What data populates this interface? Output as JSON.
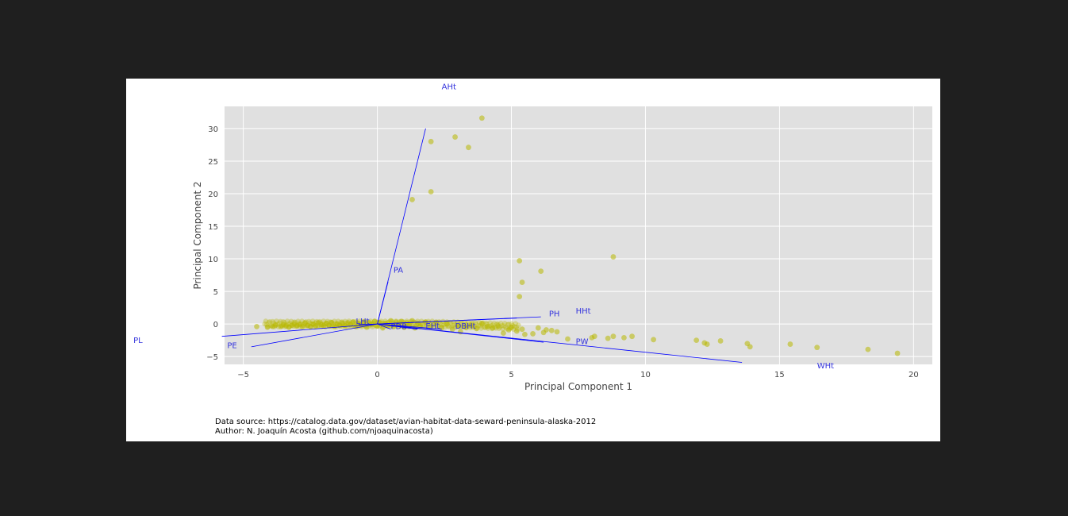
{
  "colors": {
    "background": "#1f1f1f",
    "figure": "#ffffff",
    "plot_background": "#e0e0e0",
    "grid": "#ffffff",
    "points": "#b8b800",
    "vectors": "#0000ff",
    "vector_labels": "#3333dd",
    "axis_text": "#444444"
  },
  "caption": {
    "source": "Data source: https://catalog.data.gov/dataset/avian-habitat-data-seward-peninsula-alaska-2012",
    "author": "Author: N. Joaquín Acosta (github.com/njoaquinacosta)"
  },
  "chart_data": {
    "type": "scatter",
    "title": "",
    "xlabel": "Principal Component 1",
    "ylabel": "Principal Component 2",
    "xlim": [
      -5.7,
      20.7
    ],
    "ylim": [
      -6.2,
      33.4
    ],
    "xticks": [
      -5,
      0,
      5,
      10,
      15,
      20
    ],
    "xtick_labels": [
      "−5",
      "0",
      "5",
      "10",
      "15",
      "20"
    ],
    "yticks": [
      -5,
      0,
      5,
      10,
      15,
      20,
      25,
      30
    ],
    "ytick_labels": [
      "−5",
      "0",
      "5",
      "10",
      "15",
      "20",
      "25",
      "30"
    ],
    "grid": true,
    "points": [
      [
        -4.5,
        -0.4
      ],
      [
        -4.1,
        -0.5
      ],
      [
        -3.9,
        -0.4
      ],
      [
        -3.8,
        -0.2
      ],
      [
        -3.6,
        -0.4
      ],
      [
        -3.5,
        -0.1
      ],
      [
        -3.4,
        -0.3
      ],
      [
        -3.3,
        -0.5
      ],
      [
        -3.2,
        -0.2
      ],
      [
        -3.1,
        0.0
      ],
      [
        -3.0,
        -0.3
      ],
      [
        -2.9,
        -0.1
      ],
      [
        -2.8,
        -0.4
      ],
      [
        -2.7,
        0.1
      ],
      [
        -2.6,
        -0.2
      ],
      [
        -2.5,
        -0.4
      ],
      [
        -2.4,
        0.0
      ],
      [
        -2.3,
        -0.3
      ],
      [
        -2.2,
        0.2
      ],
      [
        -2.1,
        -0.1
      ],
      [
        -2.0,
        -0.3
      ],
      [
        -1.9,
        0.1
      ],
      [
        -1.8,
        -0.2
      ],
      [
        -1.7,
        0.2
      ],
      [
        -1.6,
        -0.4
      ],
      [
        -1.5,
        0.0
      ],
      [
        -1.4,
        -0.2
      ],
      [
        -1.3,
        0.1
      ],
      [
        -1.2,
        -0.3
      ],
      [
        -1.1,
        0.2
      ],
      [
        -1.0,
        -0.1
      ],
      [
        -0.9,
        0.3
      ],
      [
        -0.8,
        -0.4
      ],
      [
        -0.7,
        0.1
      ],
      [
        -0.6,
        -0.2
      ],
      [
        -0.5,
        0.3
      ],
      [
        -0.4,
        -0.5
      ],
      [
        -0.3,
        0.2
      ],
      [
        -0.2,
        -0.1
      ],
      [
        -0.1,
        0.4
      ],
      [
        0.0,
        -0.3
      ],
      [
        0.1,
        0.2
      ],
      [
        0.2,
        -0.6
      ],
      [
        0.3,
        0.1
      ],
      [
        0.4,
        -0.2
      ],
      [
        0.5,
        0.5
      ],
      [
        0.6,
        -0.4
      ],
      [
        0.7,
        0.3
      ],
      [
        0.8,
        -0.1
      ],
      [
        0.9,
        0.4
      ],
      [
        1.0,
        -0.5
      ],
      [
        1.1,
        0.2
      ],
      [
        1.2,
        -0.2
      ],
      [
        1.3,
        0.5
      ],
      [
        1.4,
        -0.6
      ],
      [
        1.5,
        0.1
      ],
      [
        1.6,
        -0.3
      ],
      [
        1.8,
        0.3
      ],
      [
        2.0,
        -0.4
      ],
      [
        2.2,
        0.2
      ],
      [
        2.4,
        -0.6
      ],
      [
        2.6,
        0.0
      ],
      [
        2.8,
        -0.8
      ],
      [
        3.0,
        -0.3
      ],
      [
        3.1,
        -1.2
      ],
      [
        3.3,
        -0.5
      ],
      [
        3.5,
        -0.2
      ],
      [
        3.7,
        -0.7
      ],
      [
        3.9,
        0.1
      ],
      [
        4.1,
        -0.4
      ],
      [
        4.3,
        -0.6
      ],
      [
        4.5,
        -0.3
      ],
      [
        4.7,
        -1.4
      ],
      [
        4.9,
        -0.9
      ],
      [
        5.0,
        -0.5
      ],
      [
        5.2,
        -1.1
      ],
      [
        5.4,
        -0.8
      ],
      [
        5.5,
        -1.6
      ],
      [
        5.8,
        -1.5
      ],
      [
        6.0,
        -0.6
      ],
      [
        6.2,
        -1.3
      ],
      [
        6.3,
        -0.9
      ],
      [
        6.5,
        -1.0
      ],
      [
        6.7,
        -1.2
      ],
      [
        7.1,
        -2.3
      ],
      [
        8.0,
        -2.1
      ],
      [
        8.1,
        -1.9
      ],
      [
        8.6,
        -2.2
      ],
      [
        8.8,
        -1.9
      ],
      [
        9.2,
        -2.1
      ],
      [
        9.5,
        -1.9
      ],
      [
        10.3,
        -2.4
      ],
      [
        11.9,
        -2.5
      ],
      [
        12.2,
        -2.9
      ],
      [
        12.3,
        -3.1
      ],
      [
        12.8,
        -2.6
      ],
      [
        13.8,
        -3.0
      ],
      [
        13.9,
        -3.5
      ],
      [
        15.4,
        -3.1
      ],
      [
        16.4,
        -3.6
      ],
      [
        18.3,
        -3.9
      ],
      [
        19.4,
        -4.5
      ],
      [
        3.9,
        31.6
      ],
      [
        2.0,
        28.0
      ],
      [
        2.9,
        28.7
      ],
      [
        3.4,
        27.1
      ],
      [
        2.0,
        20.3
      ],
      [
        1.3,
        19.1
      ],
      [
        5.3,
        9.7
      ],
      [
        5.4,
        6.4
      ],
      [
        6.1,
        8.1
      ],
      [
        8.8,
        10.3
      ],
      [
        5.3,
        4.2
      ]
    ],
    "vectors": [
      {
        "name": "AHt",
        "end": [
          1.8,
          30.0
        ],
        "label_at": [
          2.4,
          36.0
        ]
      },
      {
        "name": "PA",
        "end": [
          0.4,
          6.5
        ],
        "label_at": [
          0.6,
          7.9
        ]
      },
      {
        "name": "PH",
        "end": [
          6.1,
          1.1
        ],
        "label_at": [
          6.4,
          1.2
        ]
      },
      {
        "name": "HHt",
        "end": [
          5.2,
          0.9
        ],
        "label_at": [
          7.4,
          1.6
        ]
      },
      {
        "name": "PW",
        "end": [
          6.2,
          -2.8
        ],
        "label_at": [
          7.4,
          -3.1
        ]
      },
      {
        "name": "WHt",
        "end": [
          13.6,
          -5.9
        ],
        "label_at": [
          16.4,
          -6.8
        ]
      },
      {
        "name": "LHt",
        "end": [
          -0.7,
          -0.1
        ],
        "label_at": [
          -0.8,
          0.0
        ]
      },
      {
        "name": "PDB",
        "end": [
          0.5,
          -0.8
        ],
        "label_at": [
          0.5,
          -0.8
        ]
      },
      {
        "name": "EHt",
        "end": [
          1.5,
          -0.8
        ],
        "label_at": [
          1.8,
          -0.7
        ]
      },
      {
        "name": "DBHt",
        "end": [
          2.4,
          -0.8
        ],
        "label_at": [
          2.9,
          -0.7
        ]
      },
      {
        "name": "PE",
        "end": [
          -4.7,
          -3.5
        ],
        "label_at": [
          -5.6,
          -3.7
        ]
      },
      {
        "name": "PL",
        "end": [
          -5.8,
          -1.9
        ],
        "label_at": [
          -9.1,
          -2.9
        ]
      }
    ]
  }
}
